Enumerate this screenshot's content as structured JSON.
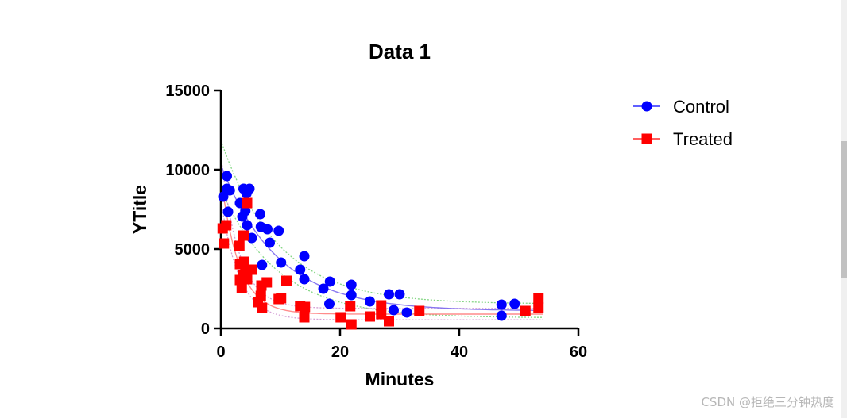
{
  "chart_data": {
    "type": "scatter",
    "title": "Data 1",
    "xlabel": "Minutes",
    "ylabel": "YTitle",
    "xlim": [
      0,
      60
    ],
    "ylim": [
      0,
      15000
    ],
    "xticks": [
      "0",
      "20",
      "40",
      "60"
    ],
    "yticks": [
      "0",
      "5000",
      "10000",
      "15000"
    ],
    "legend": {
      "position": "top-right"
    },
    "series": [
      {
        "name": "Control",
        "marker": "circle",
        "color": "#0000ff",
        "fit_color": "#7b68ee",
        "ci_color": "#66cc66",
        "fit": {
          "plateau": 1100,
          "span": 9200,
          "k": 0.105
        },
        "points": [
          [
            0.4,
            8300
          ],
          [
            1.0,
            9600
          ],
          [
            1.0,
            8800
          ],
          [
            1.5,
            8700
          ],
          [
            1.2,
            7350
          ],
          [
            3.2,
            7900
          ],
          [
            3.6,
            7050
          ],
          [
            3.8,
            8800
          ],
          [
            4.3,
            8500
          ],
          [
            4.8,
            8800
          ],
          [
            4.1,
            7400
          ],
          [
            4.4,
            6500
          ],
          [
            5.2,
            5700
          ],
          [
            6.6,
            7200
          ],
          [
            6.7,
            6400
          ],
          [
            7.8,
            6250
          ],
          [
            8.2,
            5400
          ],
          [
            9.7,
            6150
          ],
          [
            6.9,
            4000
          ],
          [
            10.1,
            4150
          ],
          [
            13.3,
            3700
          ],
          [
            14.0,
            4550
          ],
          [
            14.0,
            3100
          ],
          [
            17.2,
            2500
          ],
          [
            18.3,
            2950
          ],
          [
            18.2,
            1550
          ],
          [
            21.9,
            2750
          ],
          [
            21.9,
            2100
          ],
          [
            25.0,
            1700
          ],
          [
            28.2,
            2150
          ],
          [
            30.0,
            2150
          ],
          [
            29.0,
            1150
          ],
          [
            31.2,
            1000
          ],
          [
            47.1,
            1500
          ],
          [
            47.1,
            800
          ],
          [
            49.3,
            1550
          ]
        ]
      },
      {
        "name": "Treated",
        "marker": "square",
        "color": "#ff0000",
        "fit_color": "#ff8080",
        "ci_color": "#cc88cc",
        "fit": {
          "plateau": 900,
          "span": 8600,
          "k": 0.33
        },
        "points": [
          [
            0.3,
            6300
          ],
          [
            0.9,
            6500
          ],
          [
            0.5,
            5350
          ],
          [
            3.1,
            5200
          ],
          [
            3.8,
            5850
          ],
          [
            4.4,
            7900
          ],
          [
            3.2,
            4050
          ],
          [
            3.9,
            4200
          ],
          [
            4.1,
            3600
          ],
          [
            5.2,
            3700
          ],
          [
            3.2,
            3050
          ],
          [
            3.8,
            3350
          ],
          [
            4.4,
            3100
          ],
          [
            3.5,
            2550
          ],
          [
            6.2,
            1650
          ],
          [
            6.7,
            2050
          ],
          [
            6.8,
            2700
          ],
          [
            7.7,
            2900
          ],
          [
            6.9,
            1300
          ],
          [
            9.7,
            1850
          ],
          [
            10.1,
            1900
          ],
          [
            11.0,
            3000
          ],
          [
            13.3,
            1400
          ],
          [
            14.1,
            1350
          ],
          [
            14.0,
            700
          ],
          [
            20.1,
            700
          ],
          [
            21.7,
            1400
          ],
          [
            21.9,
            250
          ],
          [
            25.0,
            750
          ],
          [
            26.9,
            1450
          ],
          [
            26.9,
            900
          ],
          [
            28.2,
            450
          ],
          [
            33.3,
            1100
          ],
          [
            51.1,
            1100
          ],
          [
            53.3,
            1900
          ],
          [
            53.3,
            1300
          ]
        ]
      }
    ]
  },
  "watermark": "CSDN @拒绝三分钟热度"
}
